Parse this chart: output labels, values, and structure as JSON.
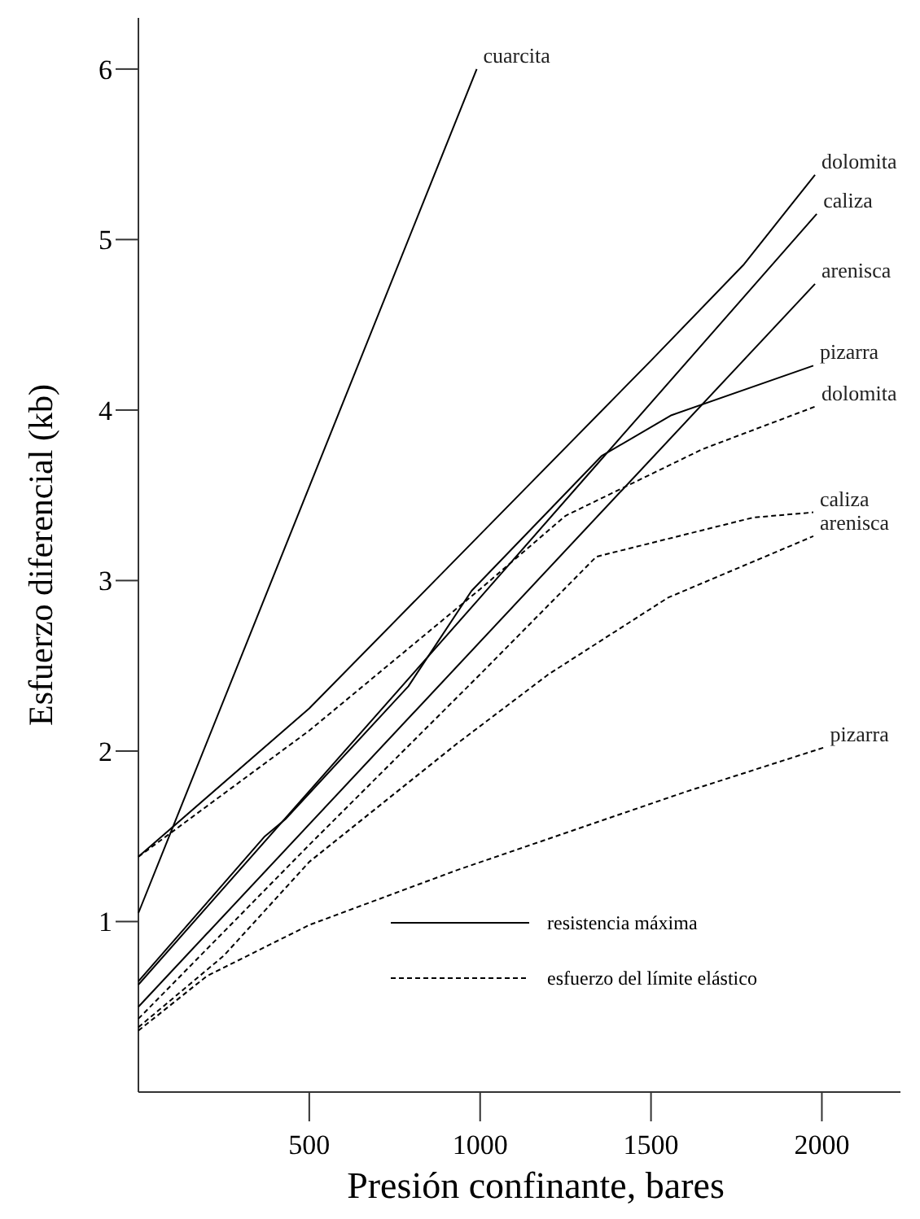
{
  "chart_data": {
    "type": "line",
    "xlabel": "Presión confinante, bares",
    "ylabel": "Esfuerzo diferencial (kb)",
    "xlim": [
      0,
      2230
    ],
    "ylim": [
      0,
      6.3
    ],
    "xticks": [
      500,
      1000,
      1500,
      2000
    ],
    "yticks": [
      1,
      2,
      3,
      4,
      5,
      6
    ],
    "grid": false,
    "marker": "none",
    "annotations": [
      "resistencia máxima",
      "esfuerzo del límite elástico"
    ],
    "series": [
      {
        "name": "cuarcita",
        "color": "#000000",
        "line_style": "solid",
        "x": [
          0,
          990
        ],
        "values": [
          1.05,
          6.0
        ]
      },
      {
        "name": "dolomita",
        "color": "#000000",
        "line_style": "solid",
        "x": [
          0,
          500,
          1000,
          1500,
          1770,
          1980
        ],
        "values": [
          1.38,
          2.25,
          3.27,
          4.29,
          4.85,
          5.38
        ]
      },
      {
        "name": "caliza",
        "color": "#000000",
        "line_style": "solid",
        "x": [
          0,
          1000,
          1350,
          1985
        ],
        "values": [
          0.63,
          2.9,
          3.7,
          5.15
        ]
      },
      {
        "name": "arenisca",
        "color": "#000000",
        "line_style": "solid",
        "x": [
          0,
          1980
        ],
        "values": [
          0.5,
          4.74
        ]
      },
      {
        "name": "pizarra",
        "color": "#000000",
        "line_style": "solid",
        "x": [
          0,
          370,
          430,
          790,
          975,
          1355,
          1560,
          1975
        ],
        "values": [
          0.65,
          1.5,
          1.6,
          2.38,
          2.94,
          3.73,
          3.97,
          4.26
        ]
      },
      {
        "name": "dolomita",
        "color": "#000000",
        "line_style": "dashed",
        "x": [
          0,
          500,
          1000,
          1250,
          1650,
          1980
        ],
        "values": [
          1.38,
          2.12,
          2.95,
          3.38,
          3.77,
          4.02
        ]
      },
      {
        "name": "caliza",
        "color": "#000000",
        "line_style": "dashed",
        "x": [
          0,
          500,
          1000,
          1340,
          1800,
          1975
        ],
        "values": [
          0.43,
          1.45,
          2.45,
          3.14,
          3.37,
          3.4
        ]
      },
      {
        "name": "arenisca",
        "color": "#000000",
        "line_style": "dashed",
        "x": [
          0,
          250,
          500,
          930,
          1200,
          1550,
          1975
        ],
        "values": [
          0.38,
          0.8,
          1.35,
          2.04,
          2.45,
          2.9,
          3.26
        ]
      },
      {
        "name": "pizarra",
        "color": "#000000",
        "line_style": "dashed",
        "x": [
          0,
          200,
          500,
          930,
          1600,
          2005
        ],
        "values": [
          0.36,
          0.68,
          0.98,
          1.3,
          1.76,
          2.02
        ]
      }
    ]
  }
}
